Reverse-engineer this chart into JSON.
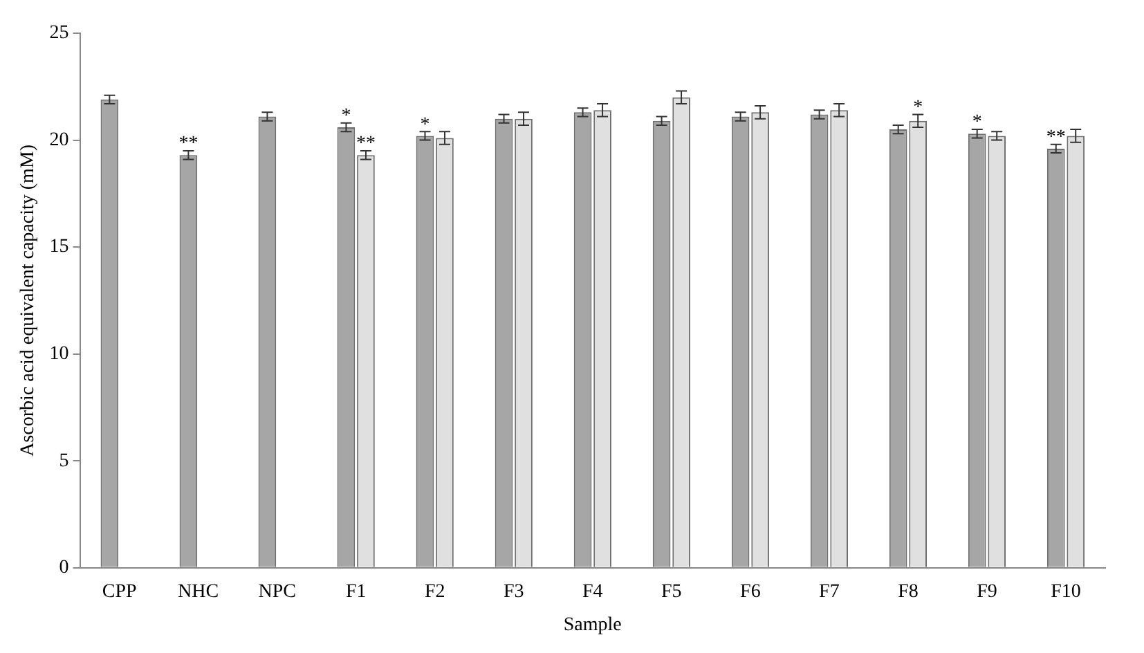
{
  "chart_data": {
    "type": "bar",
    "xlabel": "Sample",
    "ylabel": "Ascorbic acid equivalent capacity (mM)",
    "categories": [
      "CPP",
      "NHC",
      "NPC",
      "F1",
      "F2",
      "F3",
      "F4",
      "F5",
      "F6",
      "F7",
      "F8",
      "F9",
      "F10"
    ],
    "series": [
      {
        "color": "#a6a6a6",
        "values": [
          21.9,
          19.3,
          21.1,
          20.6,
          20.2,
          21.0,
          21.3,
          20.9,
          21.1,
          21.2,
          20.5,
          20.3,
          19.6
        ],
        "errors": [
          0.2,
          0.2,
          0.2,
          0.2,
          0.2,
          0.2,
          0.2,
          0.2,
          0.2,
          0.2,
          0.2,
          0.2,
          0.2
        ]
      },
      {
        "color": "#e0e0e0",
        "values": [
          null,
          null,
          null,
          19.3,
          20.1,
          21.0,
          21.4,
          22.0,
          21.3,
          21.4,
          20.9,
          20.2,
          20.2
        ],
        "errors": [
          null,
          null,
          null,
          0.2,
          0.3,
          0.3,
          0.3,
          0.3,
          0.3,
          0.3,
          0.3,
          0.2,
          0.3
        ]
      }
    ],
    "ylim": [
      0,
      25
    ],
    "yticks": [
      0,
      5,
      10,
      15,
      20,
      25
    ],
    "grid": false,
    "legend": false,
    "annotations": [
      {
        "text": "**",
        "x": "NHC",
        "y": 19.3
      },
      {
        "text": "*",
        "x": "F1",
        "y": 20.6
      },
      {
        "text": "**",
        "x": "F1",
        "y": 19.3
      },
      {
        "text": "*",
        "x": "F2",
        "y": 20.2
      },
      {
        "text": "*",
        "x": "F8",
        "y": 20.9
      },
      {
        "text": "*",
        "x": "F9",
        "y": 20.3
      },
      {
        "text": "**",
        "x": "F10",
        "y": 19.6
      }
    ]
  }
}
